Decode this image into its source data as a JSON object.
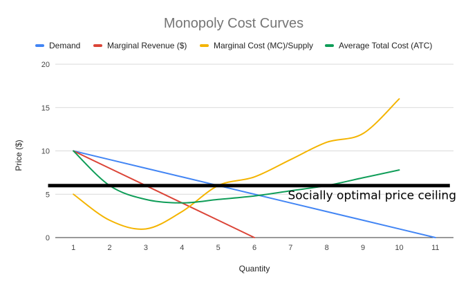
{
  "chart_data": {
    "type": "line",
    "title": "Monopoly Cost Curves",
    "xlabel": "Quantity",
    "ylabel": "Price ($)",
    "ylim": [
      0,
      20
    ],
    "yticks": [
      0,
      5,
      10,
      15,
      20
    ],
    "x": [
      1,
      2,
      3,
      4,
      5,
      6,
      7,
      8,
      9,
      10,
      11
    ],
    "grid": "horizontal",
    "legend_position": "top",
    "series": [
      {
        "name": "Demand",
        "color": "#4285f4",
        "x": [
          1,
          2,
          3,
          4,
          5,
          6,
          7,
          8,
          9,
          10,
          11
        ],
        "values": [
          10,
          9,
          8,
          7,
          6,
          5,
          4,
          3,
          2,
          1,
          0
        ]
      },
      {
        "name": "Marginal Revenue ($)",
        "color": "#db4437",
        "x": [
          1,
          2,
          3,
          4,
          5,
          6
        ],
        "values": [
          10,
          8,
          6,
          4,
          2,
          0
        ]
      },
      {
        "name": "Marginal Cost (MC)/Supply",
        "color": "#f4b400",
        "x": [
          1,
          2,
          3,
          4,
          5,
          6,
          7,
          8,
          9,
          10
        ],
        "values": [
          5,
          2,
          1,
          3,
          6,
          7,
          9,
          11,
          12,
          16
        ]
      },
      {
        "name": "Average Total Cost (ATC)",
        "color": "#0f9d58",
        "x": [
          1,
          2,
          3,
          4,
          5,
          6,
          7,
          8,
          9,
          10
        ],
        "values": [
          10,
          6,
          4.4,
          4,
          4.4,
          4.8,
          5.4,
          6,
          6.9,
          7.8
        ]
      }
    ],
    "annotations": [
      {
        "text": "Socially optimal price ceiling",
        "y": 6,
        "x_from": 0.3,
        "x_to": 11.4,
        "color": "#000000"
      }
    ]
  }
}
